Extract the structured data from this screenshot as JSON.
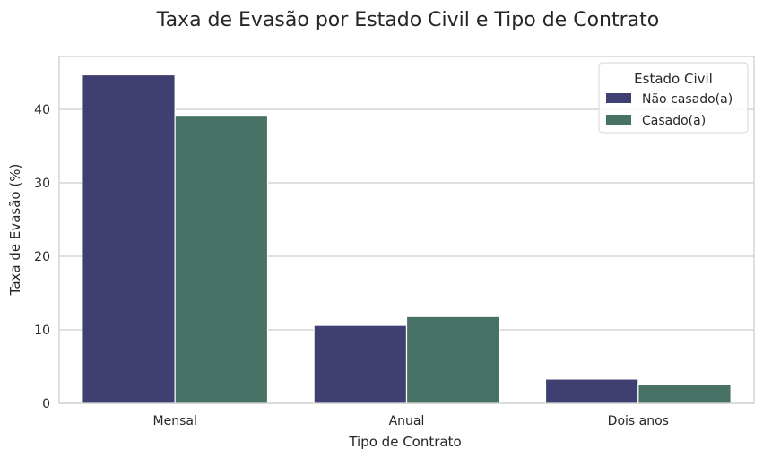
{
  "chart_data": {
    "type": "bar",
    "title": "Taxa de Evasão por Estado Civil e Tipo de Contrato",
    "xlabel": "Tipo de Contrato",
    "ylabel": "Taxa de Evasão (%)",
    "categories": [
      "Mensal",
      "Anual",
      "Dois anos"
    ],
    "series": [
      {
        "name": "Não casado(a)",
        "color": "#3f3f72",
        "values": [
          44.7,
          10.6,
          3.3
        ]
      },
      {
        "name": "Casado(a)",
        "color": "#477265",
        "values": [
          39.2,
          11.8,
          2.6
        ]
      }
    ],
    "ylim": [
      0,
      47.2
    ],
    "yticks": [
      0,
      10,
      20,
      30,
      40
    ],
    "grid": "y",
    "legend": {
      "title": "Estado Civil",
      "placement": "top-right"
    }
  }
}
